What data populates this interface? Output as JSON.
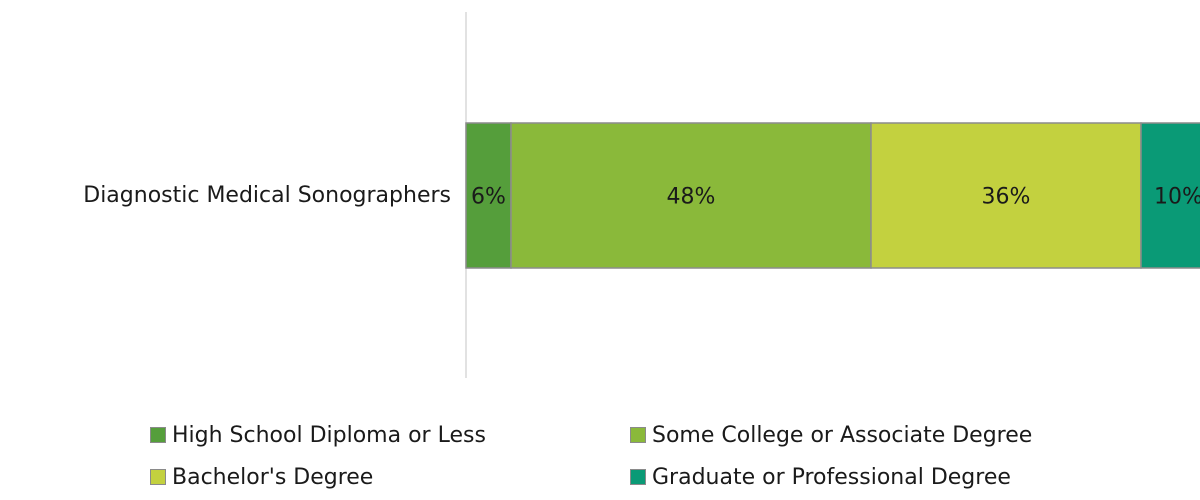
{
  "chart_data": {
    "type": "bar",
    "orientation": "horizontal",
    "stacked": true,
    "categories": [
      "Diagnostic Medical Sonographers"
    ],
    "series": [
      {
        "name": "High School Diploma or Less",
        "values": [
          6
        ],
        "label": "6%",
        "color": "#559e3b"
      },
      {
        "name": "Some College or Associate Degree",
        "values": [
          48
        ],
        "label": "48%",
        "color": "#8ab93a"
      },
      {
        "name": "Bachelor's Degree",
        "values": [
          36
        ],
        "label": "36%",
        "color": "#c3d13f"
      },
      {
        "name": "Graduate or Professional Degree",
        "values": [
          10
        ],
        "label": "10%",
        "color": "#0a9a76"
      }
    ],
    "xlim": [
      0,
      100
    ],
    "grid": false,
    "legend_position": "bottom",
    "title": "",
    "xlabel": "",
    "ylabel": ""
  }
}
